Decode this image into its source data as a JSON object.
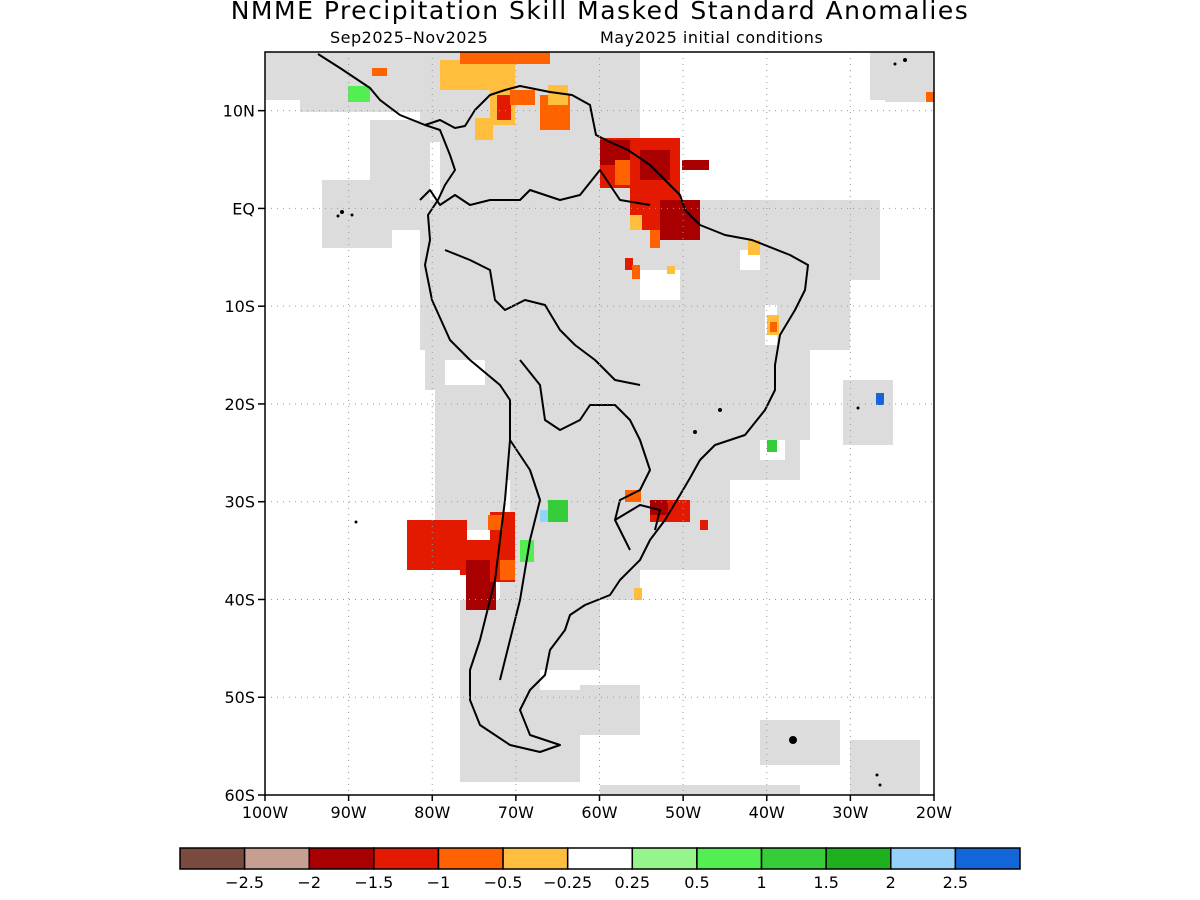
{
  "title": "NMME Precipitation Skill Masked Standard Anomalies",
  "subtitle_period": "Sep2025–Nov2025",
  "subtitle_ic": "May2025 initial conditions",
  "map": {
    "lat_labels": [
      {
        "lat": 10,
        "label": "10N"
      },
      {
        "lat": 0,
        "label": "EQ"
      },
      {
        "lat": -10,
        "label": "10S"
      },
      {
        "lat": -20,
        "label": "20S"
      },
      {
        "lat": -30,
        "label": "30S"
      },
      {
        "lat": -40,
        "label": "40S"
      },
      {
        "lat": -50,
        "label": "50S"
      },
      {
        "lat": -60,
        "label": "60S"
      }
    ],
    "lon_labels": [
      {
        "lon": -100,
        "label": "100W"
      },
      {
        "lon": -90,
        "label": "90W"
      },
      {
        "lon": -80,
        "label": "80W"
      },
      {
        "lon": -70,
        "label": "70W"
      },
      {
        "lon": -60,
        "label": "60W"
      },
      {
        "lon": -50,
        "label": "50W"
      },
      {
        "lon": -40,
        "label": "40W"
      },
      {
        "lon": -30,
        "label": "30W"
      },
      {
        "lon": -20,
        "label": "20W"
      }
    ],
    "lat_range": [
      -60,
      16
    ],
    "lon_range": [
      -100,
      -20
    ],
    "gridlines": true
  },
  "colorbar": {
    "colors": [
      "#7a4a3e",
      "#c89e93",
      "#a80000",
      "#e31a00",
      "#ff6200",
      "#ffbe3d",
      "#ffffff",
      "#96f58a",
      "#52ee52",
      "#35ce3a",
      "#1fb01f",
      "#94d2fa",
      "#1266d8"
    ],
    "labels": [
      "−2.5",
      "−2",
      "−1.5",
      "−1",
      "−0.5",
      "−0.25",
      "0.25",
      "0.5",
      "1",
      "1.5",
      "2",
      "2.5"
    ]
  }
}
